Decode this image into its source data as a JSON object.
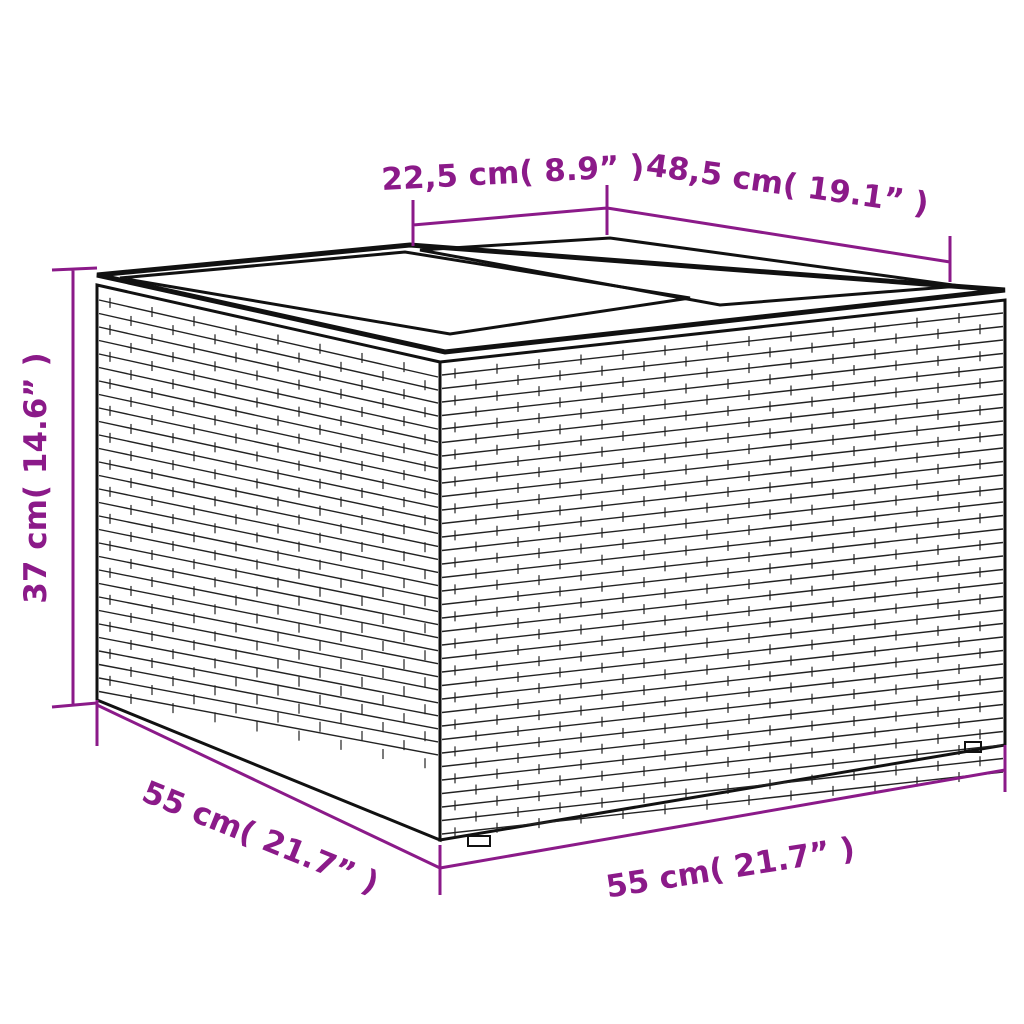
{
  "colors": {
    "dimension": "#8b1a89",
    "outline": "#111111",
    "background": "#ffffff"
  },
  "dimensions": {
    "top_depth": "22,5 cm( 8.9” )",
    "top_width": "48,5 cm( 19.1” )",
    "height": "37 cm( 14.6” )",
    "side_depth": "55 cm( 21.7” )",
    "front_width": "55 cm( 21.7” )"
  }
}
